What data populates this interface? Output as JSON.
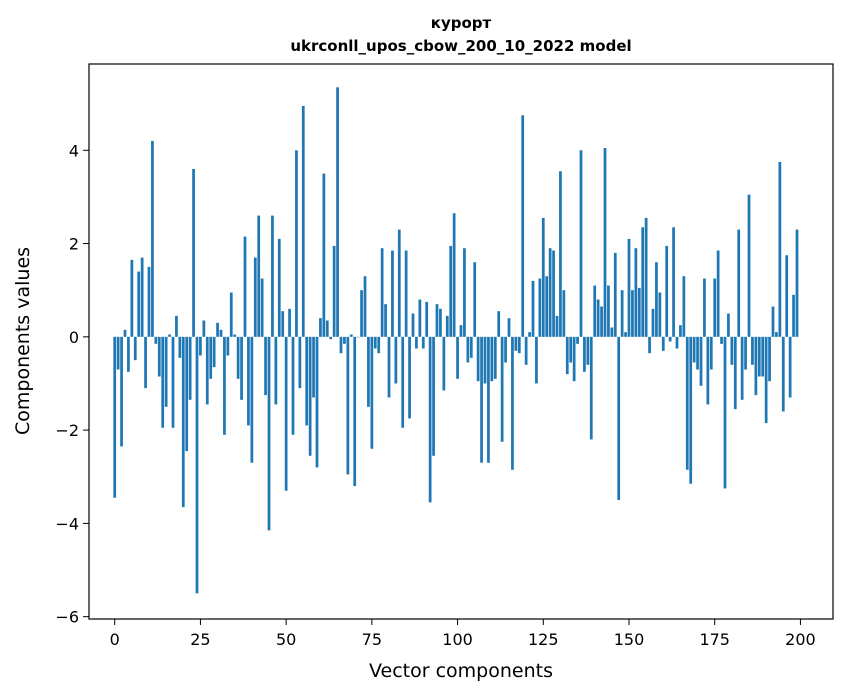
{
  "chart_data": {
    "type": "bar",
    "title": "курорт",
    "subtitle": "ukrconll_upos_cbow_200_10_2022 model",
    "xlabel": "Vector components",
    "ylabel": "Components values",
    "xlim": [
      -7.5,
      209.5
    ],
    "ylim": [
      -6.05,
      5.85
    ],
    "xticks": [
      0,
      25,
      50,
      75,
      100,
      125,
      150,
      175,
      200
    ],
    "yticks": [
      -6,
      -4,
      -2,
      0,
      2,
      4
    ],
    "bar_color": "#1f77b4",
    "grid": false,
    "x": [
      0,
      1,
      2,
      3,
      4,
      5,
      6,
      7,
      8,
      9,
      10,
      11,
      12,
      13,
      14,
      15,
      16,
      17,
      18,
      19,
      20,
      21,
      22,
      23,
      24,
      25,
      26,
      27,
      28,
      29,
      30,
      31,
      32,
      33,
      34,
      35,
      36,
      37,
      38,
      39,
      40,
      41,
      42,
      43,
      44,
      45,
      46,
      47,
      48,
      49,
      50,
      51,
      52,
      53,
      54,
      55,
      56,
      57,
      58,
      59,
      60,
      61,
      62,
      63,
      64,
      65,
      66,
      67,
      68,
      69,
      70,
      71,
      72,
      73,
      74,
      75,
      76,
      77,
      78,
      79,
      80,
      81,
      82,
      83,
      84,
      85,
      86,
      87,
      88,
      89,
      90,
      91,
      92,
      93,
      94,
      95,
      96,
      97,
      98,
      99,
      100,
      101,
      102,
      103,
      104,
      105,
      106,
      107,
      108,
      109,
      110,
      111,
      112,
      113,
      114,
      115,
      116,
      117,
      118,
      119,
      120,
      121,
      122,
      123,
      124,
      125,
      126,
      127,
      128,
      129,
      130,
      131,
      132,
      133,
      134,
      135,
      136,
      137,
      138,
      139,
      140,
      141,
      142,
      143,
      144,
      145,
      146,
      147,
      148,
      149,
      150,
      151,
      152,
      153,
      154,
      155,
      156,
      157,
      158,
      159,
      160,
      161,
      162,
      163,
      164,
      165,
      166,
      167,
      168,
      169,
      170,
      171,
      172,
      173,
      174,
      175,
      176,
      177,
      178,
      179,
      180,
      181,
      182,
      183,
      184,
      185,
      186,
      187,
      188,
      189,
      190,
      191,
      192,
      193,
      194,
      195,
      196,
      197,
      198,
      199
    ],
    "values": [
      -3.45,
      -0.7,
      -2.35,
      0.15,
      -0.75,
      1.65,
      -0.5,
      1.4,
      1.7,
      -1.1,
      1.5,
      4.2,
      -0.15,
      -0.85,
      -1.95,
      -1.5,
      0.05,
      -1.95,
      0.45,
      -0.45,
      -3.65,
      -2.45,
      -1.35,
      3.6,
      -5.5,
      -0.4,
      0.35,
      -1.45,
      -0.9,
      -0.65,
      0.3,
      0.15,
      -2.1,
      -0.4,
      0.95,
      0.05,
      -0.9,
      -1.35,
      2.15,
      -1.9,
      -2.7,
      1.7,
      2.6,
      1.25,
      -1.25,
      -4.15,
      2.6,
      -1.45,
      2.1,
      0.55,
      -3.3,
      0.6,
      -2.1,
      4.0,
      -1.1,
      4.95,
      -1.9,
      -2.55,
      -1.3,
      -2.8,
      0.4,
      3.5,
      0.35,
      -0.05,
      1.95,
      5.35,
      -0.35,
      -0.15,
      -2.95,
      0.05,
      -3.2,
      0.0,
      1.0,
      1.3,
      -1.5,
      -2.4,
      -0.25,
      -0.35,
      1.9,
      0.7,
      -1.3,
      1.85,
      -1.0,
      2.3,
      -1.95,
      1.85,
      -1.75,
      0.5,
      -0.25,
      0.8,
      -0.25,
      0.75,
      -3.55,
      -2.55,
      0.7,
      0.6,
      -1.15,
      0.45,
      1.95,
      2.65,
      -0.9,
      0.25,
      1.9,
      -0.55,
      -0.45,
      1.6,
      -0.95,
      -2.7,
      -1.0,
      -2.7,
      -0.95,
      -0.9,
      0.55,
      -2.25,
      -0.55,
      0.4,
      -2.85,
      -0.3,
      -0.35,
      4.75,
      -0.6,
      0.1,
      1.2,
      -1.0,
      1.25,
      2.55,
      1.3,
      1.9,
      1.85,
      0.45,
      3.55,
      1.0,
      -0.8,
      -0.55,
      -0.95,
      -0.15,
      4.0,
      -0.75,
      -0.6,
      -2.2,
      1.1,
      0.8,
      0.65,
      4.05,
      1.1,
      0.2,
      1.8,
      -3.5,
      1.0,
      0.1,
      2.1,
      1.0,
      1.9,
      1.05,
      2.35,
      2.55,
      -0.35,
      0.6,
      1.6,
      0.95,
      -0.3,
      1.95,
      -0.1,
      2.35,
      -0.25,
      0.25,
      1.3,
      -2.85,
      -3.15,
      -0.55,
      -0.7,
      -1.05,
      1.25,
      -1.45,
      -0.7,
      1.25,
      1.85,
      -0.15,
      -3.25,
      0.5,
      -0.6,
      -1.55,
      2.3,
      -1.35,
      -0.7,
      3.05,
      -0.6,
      -1.25,
      -0.85,
      -0.85,
      -1.85,
      -0.95,
      0.65,
      0.1,
      3.75,
      -1.6,
      1.75,
      -1.3,
      0.9,
      2.3
    ]
  }
}
